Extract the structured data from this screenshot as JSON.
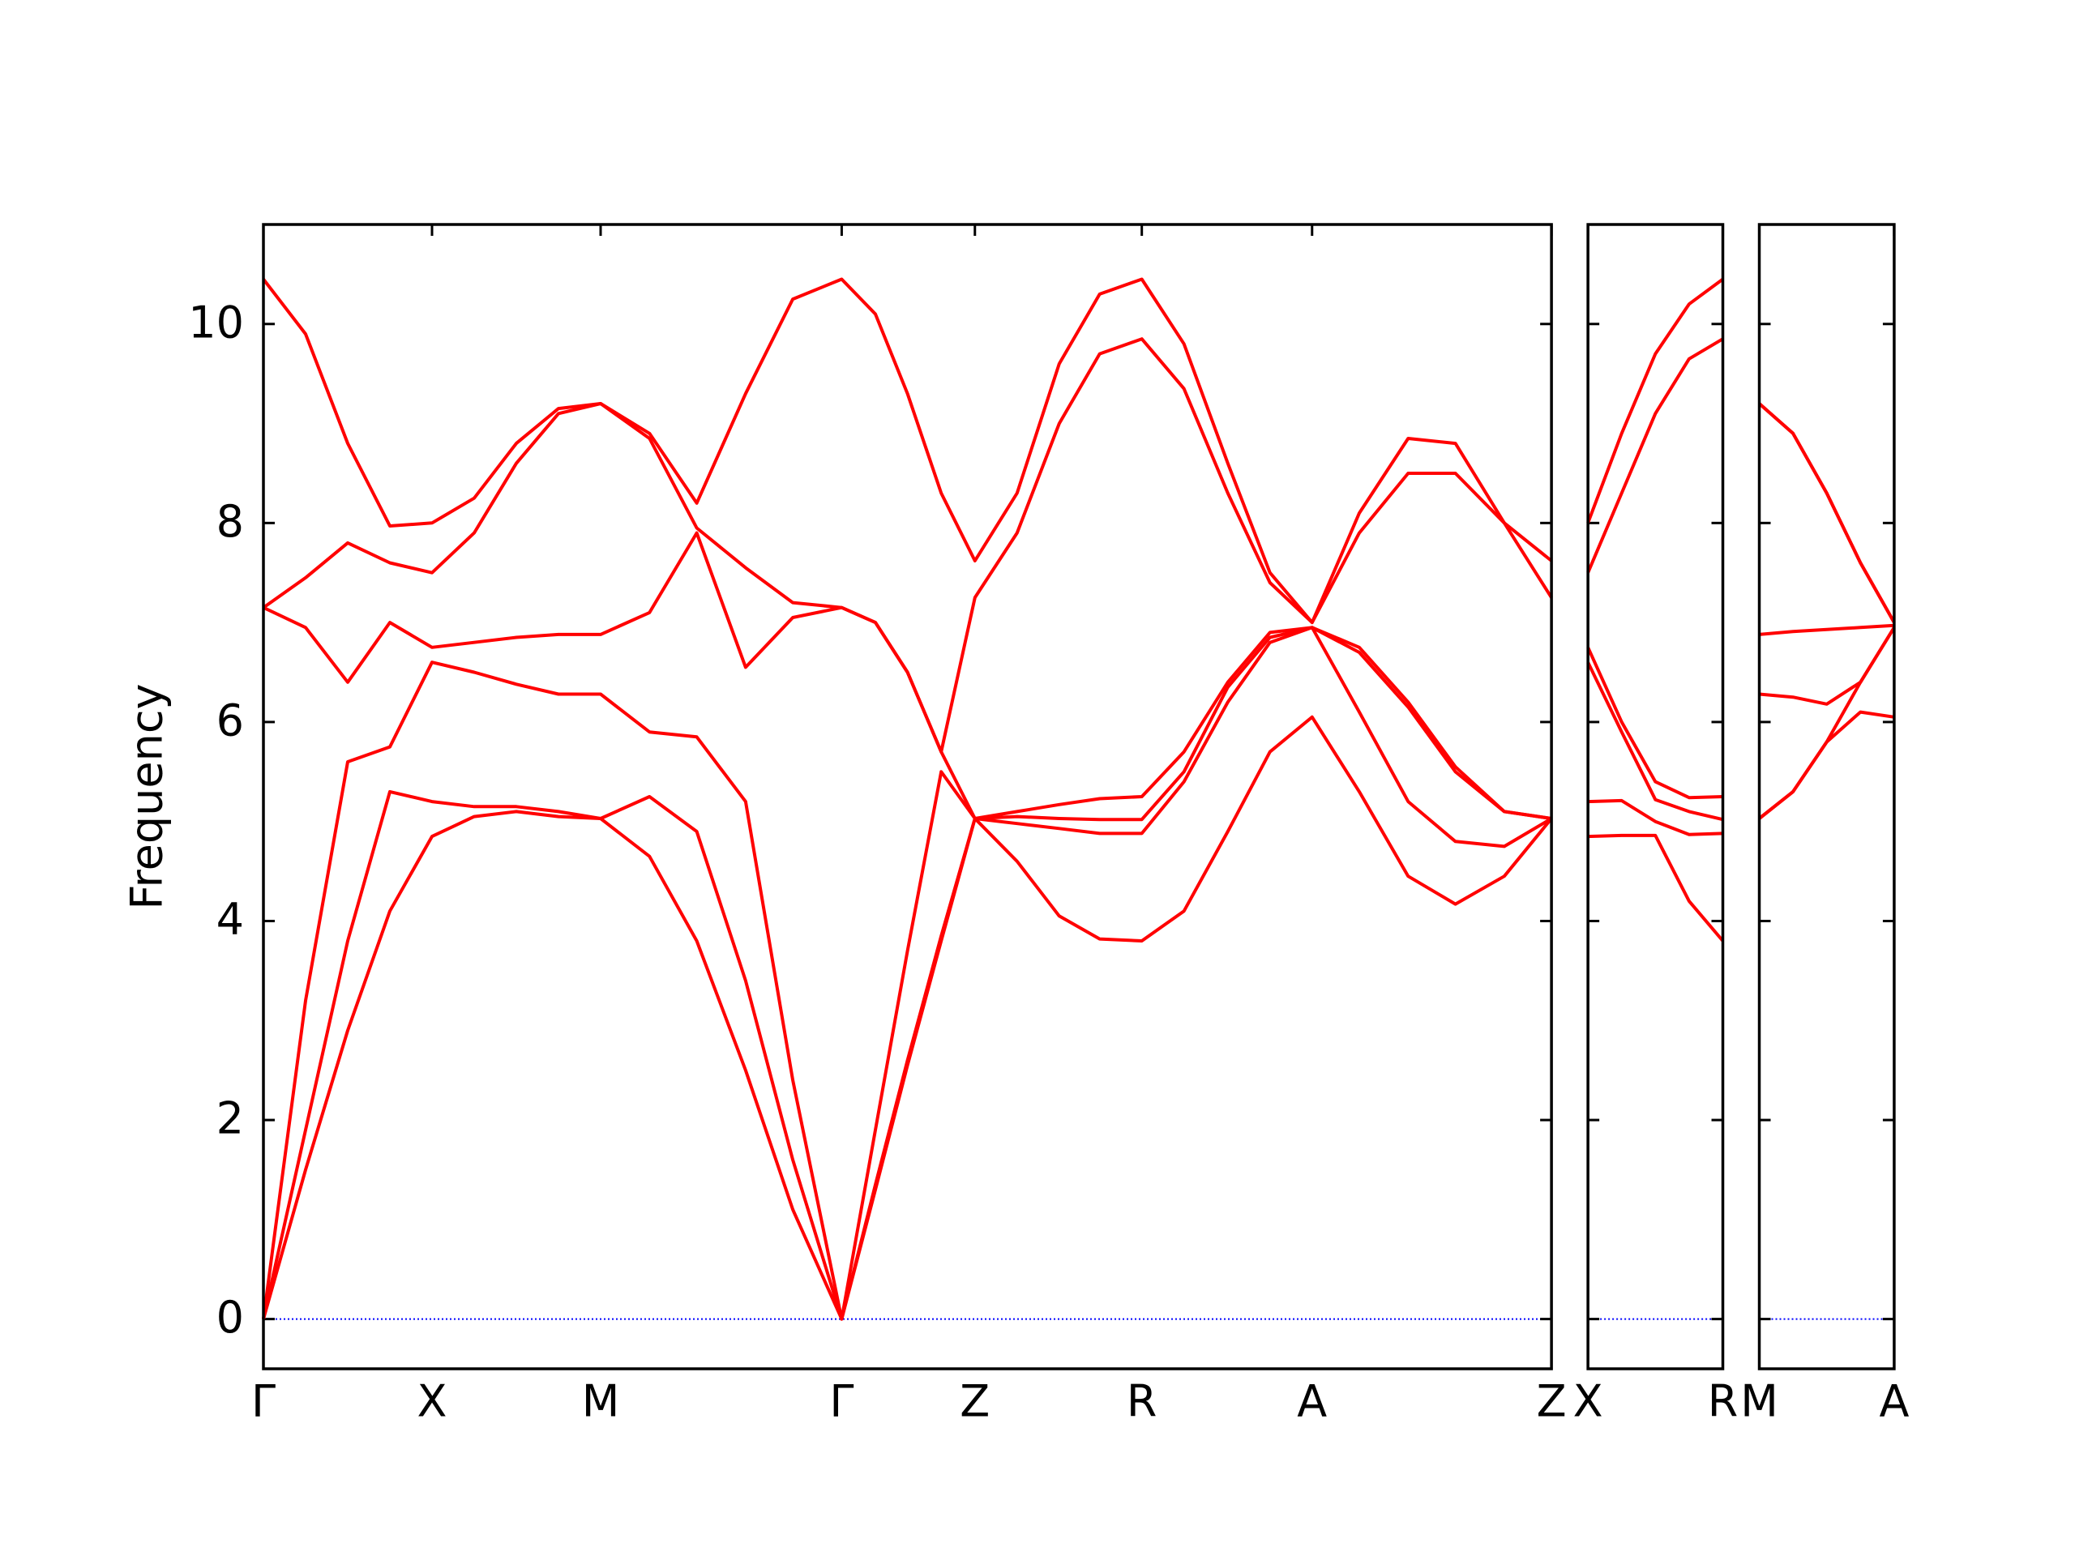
{
  "chart_data": [
    {
      "type": "line",
      "ylabel": "Frequency",
      "x": [
        0,
        0.25,
        0.5,
        0.75,
        1,
        1.25,
        1.5,
        1.75,
        2,
        2.29,
        2.57,
        2.86,
        3.14,
        3.43,
        3.63,
        3.82,
        4.02,
        4.22,
        4.47,
        4.72,
        4.96,
        5.21,
        5.46,
        5.72,
        5.97,
        6.22,
        6.5,
        6.79,
        7.07,
        7.36,
        7.64
      ],
      "xlim": [
        0,
        7.64
      ],
      "xticks": [
        {
          "value": 0,
          "label": "Γ"
        },
        {
          "value": 1,
          "label": "X"
        },
        {
          "value": 2,
          "label": "M"
        },
        {
          "value": 3.43,
          "label": "Γ"
        },
        {
          "value": 4.22,
          "label": "Z"
        },
        {
          "value": 5.21,
          "label": "R"
        },
        {
          "value": 6.22,
          "label": "A"
        },
        {
          "value": 7.64,
          "label": "Z"
        }
      ],
      "ylim": [
        -0.5,
        11
      ],
      "yticks": [
        0,
        2,
        4,
        6,
        8,
        10
      ],
      "show_ytick_labels": true,
      "zero_line": {
        "value": 0,
        "color": "#0000ff"
      },
      "series": [
        {
          "color": "#ff0000",
          "values": [
            0,
            1.5,
            2.9,
            4.1,
            4.85,
            5.05,
            5.1,
            5.05,
            5.03,
            4.65,
            3.8,
            2.5,
            1.1,
            0,
            1.3,
            2.55,
            3.8,
            5.03,
            4.6,
            4.05,
            3.82,
            3.8,
            4.1,
            4.9,
            5.7,
            6.05,
            5.3,
            4.45,
            4.17,
            4.45,
            5.03
          ]
        },
        {
          "color": "#ff0000",
          "values": [
            0,
            1.9,
            3.8,
            5.3,
            5.2,
            5.15,
            5.15,
            5.1,
            5.03,
            5.25,
            4.9,
            3.4,
            1.6,
            0,
            1.35,
            2.6,
            3.85,
            5.03,
            4.98,
            4.93,
            4.88,
            4.88,
            5.4,
            6.2,
            6.8,
            6.95,
            6.1,
            5.2,
            4.8,
            4.75,
            5.03
          ]
        },
        {
          "color": "#ff0000",
          "values": [
            0,
            3.2,
            5.6,
            5.75,
            6.6,
            6.5,
            6.38,
            6.28,
            6.28,
            5.9,
            5.85,
            5.2,
            2.4,
            0,
            1.9,
            3.7,
            5.5,
            5.03,
            5.05,
            5.03,
            5.02,
            5.02,
            5.5,
            6.35,
            6.85,
            6.95,
            6.7,
            6.15,
            5.5,
            5.1,
            5.03
          ]
        },
        {
          "color": "#ff0000",
          "values": [
            7.15,
            6.95,
            6.4,
            7.0,
            6.75,
            6.8,
            6.85,
            6.88,
            6.88,
            7.1,
            7.9,
            6.55,
            7.05,
            7.15,
            7.0,
            6.5,
            5.7,
            5.03,
            5.1,
            5.17,
            5.23,
            5.25,
            5.7,
            6.4,
            6.9,
            6.95,
            6.75,
            6.2,
            5.55,
            5.1,
            5.03
          ]
        },
        {
          "color": "#ff0000",
          "values": [
            7.15,
            7.45,
            7.8,
            7.6,
            7.5,
            7.9,
            8.6,
            9.1,
            9.2,
            8.85,
            7.95,
            7.55,
            7.2,
            7.15,
            7.0,
            6.5,
            5.7,
            7.25,
            7.9,
            9.0,
            9.7,
            9.85,
            9.35,
            8.3,
            7.4,
            7.0,
            7.9,
            8.5,
            8.5,
            8.0,
            7.25
          ]
        },
        {
          "color": "#ff0000",
          "values": [
            10.45,
            9.9,
            8.8,
            7.97,
            8.0,
            8.25,
            8.8,
            9.15,
            9.2,
            8.9,
            8.2,
            9.3,
            10.25,
            10.45,
            10.1,
            9.3,
            8.3,
            7.62,
            8.3,
            9.6,
            10.3,
            10.45,
            9.8,
            8.6,
            7.5,
            7.0,
            8.1,
            8.85,
            8.8,
            8.0,
            7.62
          ]
        }
      ]
    },
    {
      "type": "line",
      "x": [
        0,
        0.2,
        0.4,
        0.6,
        0.8
      ],
      "xlim": [
        0,
        0.8
      ],
      "xticks": [
        {
          "value": 0,
          "label": "X"
        },
        {
          "value": 0.8,
          "label": "R"
        }
      ],
      "ylim": [
        -0.5,
        11
      ],
      "yticks": [
        0,
        2,
        4,
        6,
        8,
        10
      ],
      "show_ytick_labels": false,
      "zero_line": {
        "value": 0,
        "color": "#0000ff"
      },
      "series": [
        {
          "color": "#ff0000",
          "values": [
            4.85,
            4.86,
            4.86,
            4.2,
            3.8
          ]
        },
        {
          "color": "#ff0000",
          "values": [
            5.2,
            5.21,
            5.0,
            4.87,
            4.88
          ]
        },
        {
          "color": "#ff0000",
          "values": [
            6.6,
            5.9,
            5.22,
            5.1,
            5.02
          ]
        },
        {
          "color": "#ff0000",
          "values": [
            6.75,
            6.0,
            5.4,
            5.24,
            5.25
          ]
        },
        {
          "color": "#ff0000",
          "values": [
            7.5,
            8.3,
            9.1,
            9.65,
            9.85
          ]
        },
        {
          "color": "#ff0000",
          "values": [
            8.0,
            8.9,
            9.7,
            10.2,
            10.45
          ]
        }
      ]
    },
    {
      "type": "line",
      "x": [
        0,
        0.2,
        0.4,
        0.6,
        0.8
      ],
      "xlim": [
        0,
        0.8
      ],
      "xticks": [
        {
          "value": 0,
          "label": "M"
        },
        {
          "value": 0.8,
          "label": "A"
        }
      ],
      "ylim": [
        -0.5,
        11
      ],
      "yticks": [
        0,
        2,
        4,
        6,
        8,
        10
      ],
      "show_ytick_labels": false,
      "zero_line": {
        "value": 0,
        "color": "#0000ff"
      },
      "series": [
        {
          "color": "#ff0000",
          "values": [
            5.03,
            5.3,
            5.8,
            6.1,
            6.05
          ]
        },
        {
          "color": "#ff0000",
          "values": [
            5.03,
            5.3,
            5.8,
            6.4,
            6.95
          ]
        },
        {
          "color": "#ff0000",
          "values": [
            6.28,
            6.25,
            6.18,
            6.4,
            6.95
          ]
        },
        {
          "color": "#ff0000",
          "values": [
            6.88,
            6.91,
            6.93,
            6.95,
            6.97
          ]
        },
        {
          "color": "#ff0000",
          "values": [
            9.2,
            8.9,
            8.3,
            7.6,
            7.0
          ]
        },
        {
          "color": "#ff0000",
          "values": [
            9.2,
            8.9,
            8.3,
            7.6,
            7.0
          ]
        }
      ]
    }
  ]
}
